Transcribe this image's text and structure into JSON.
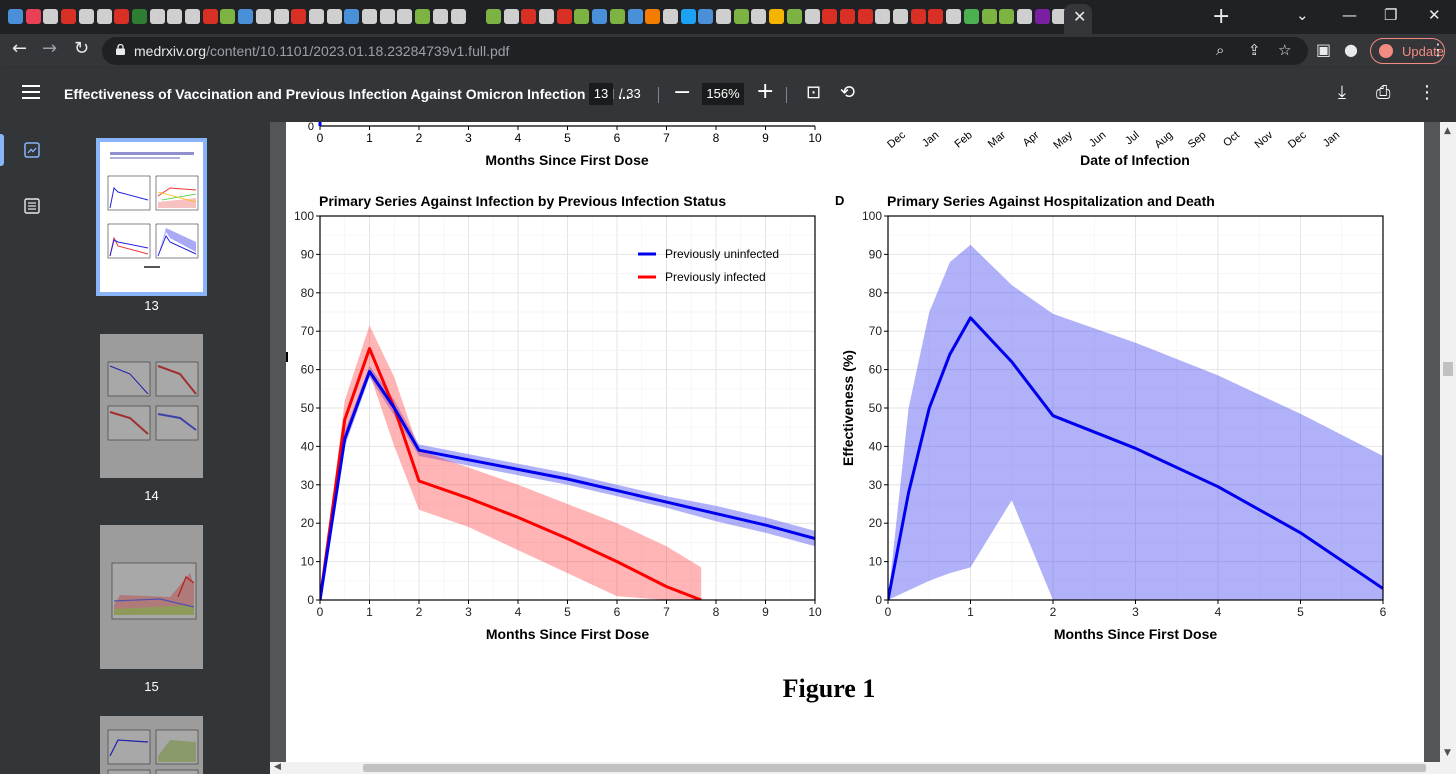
{
  "browser": {
    "tab_close": "✕",
    "new_tab": "+",
    "url_host": "medrxiv.org",
    "url_path": "/content/10.1101/2023.01.18.23284739v1.full.pdf",
    "update_label": "Update",
    "tab_icon_colors": [
      "#4a90d9",
      "#e94057",
      "#cfcfcf",
      "#d93025",
      "#cfcfcf",
      "#cfcfcf",
      "#d93025",
      "#2e7d32",
      "#cfcfcf",
      "#cfcfcf",
      "#cfcfcf",
      "#d93025",
      "#7cb342",
      "#4a90d9",
      "#cfcfcf",
      "#cfcfcf",
      "#d93025",
      "#cfcfcf",
      "#cfcfcf",
      "#4a90d9",
      "#cfcfcf",
      "#cfcfcf",
      "#cfcfcf",
      "#7cb342",
      "#cfcfcf",
      "#cfcfcf",
      "#202124",
      "#7cb342",
      "#cfcfcf",
      "#d93025",
      "#cfcfcf",
      "#d93025",
      "#7cb342",
      "#4a90d9",
      "#7cb342",
      "#4a90d9",
      "#f57c00",
      "#cfcfcf",
      "#1da1f2",
      "#4a90d9",
      "#cfcfcf",
      "#7cb342",
      "#cfcfcf",
      "#f5b400",
      "#7cb342",
      "#cfcfcf",
      "#d93025",
      "#d93025",
      "#d93025",
      "#cfcfcf",
      "#cfcfcf",
      "#d93025",
      "#d93025",
      "#cfcfcf",
      "#4caf50",
      "#7cb342",
      "#7cb342",
      "#cfcfcf",
      "#7b1fa2",
      "#cfcfcf"
    ]
  },
  "pdf": {
    "title": "Effectiveness of Vaccination and Previous Infection Against Omicron Infection and ...",
    "page_current": "13",
    "page_total": "/ 33",
    "zoom": "156%",
    "thumbnails": [
      {
        "label": "13"
      },
      {
        "label": "14"
      },
      {
        "label": "15"
      }
    ]
  },
  "figure": {
    "caption": "Figure 1",
    "top_left_xlabel": "Months Since First Dose",
    "top_right_xlabel": "Date of Infection",
    "top_left_ticks": [
      "0",
      "1",
      "2",
      "3",
      "4",
      "5",
      "6",
      "7",
      "8",
      "9",
      "10"
    ],
    "top_right_ticks": [
      "Dec",
      "Jan",
      "Feb",
      "Mar",
      "Apr",
      "May",
      "Jun",
      "Jul",
      "Aug",
      "Sep",
      "Oct",
      "Nov",
      "Dec",
      "Jan"
    ],
    "panel_d_letter": "D"
  },
  "chart_data": [
    {
      "type": "line",
      "title": "Primary Series Against Infection by Previous Infection Status",
      "xlabel": "Months Since First Dose",
      "ylabel": "",
      "xlim": [
        0,
        10
      ],
      "ylim": [
        0,
        100
      ],
      "xticks": [
        "0",
        "1",
        "2",
        "3",
        "4",
        "5",
        "6",
        "7",
        "8",
        "9",
        "10"
      ],
      "yticks": [
        "0",
        "10",
        "20",
        "30",
        "40",
        "50",
        "60",
        "70",
        "80",
        "90",
        "100"
      ],
      "legend_position": "top-right",
      "series": [
        {
          "name": "Previously uninfected",
          "color": "#0000ee",
          "x": [
            0,
            0.5,
            1,
            1.5,
            2,
            3,
            4,
            5,
            6,
            7,
            8,
            9,
            10
          ],
          "y": [
            0,
            42,
            59.5,
            50,
            39,
            36.5,
            34,
            31.5,
            28.5,
            25.5,
            22.5,
            19.5,
            16
          ],
          "lower": [
            0,
            40,
            58,
            48,
            37.5,
            35,
            32.5,
            30,
            27,
            24,
            20.5,
            17.5,
            14
          ],
          "upper": [
            0,
            44,
            61,
            52,
            40.5,
            38,
            35.5,
            33,
            30,
            27,
            24.5,
            21.5,
            18
          ]
        },
        {
          "name": "Previously infected",
          "color": "#ff0000",
          "x": [
            0,
            0.5,
            1,
            1.5,
            2,
            3,
            4,
            5,
            6,
            7,
            7.7
          ],
          "y": [
            0,
            47,
            65.5,
            50,
            31,
            26.5,
            21.5,
            16,
            10,
            3.5,
            0
          ],
          "lower": [
            0,
            42,
            59,
            40,
            23.5,
            19,
            13,
            7,
            1,
            0,
            0
          ],
          "upper": [
            0,
            52,
            71.5,
            58,
            39,
            34.5,
            30,
            25,
            20,
            14,
            8.5
          ]
        }
      ]
    },
    {
      "type": "line",
      "title": "Primary Series Against Hospitalization and Death",
      "xlabel": "Months Since First Dose",
      "ylabel": "Effectiveness (%)",
      "xlim": [
        0,
        6
      ],
      "ylim": [
        0,
        100
      ],
      "xticks": [
        "0",
        "1",
        "2",
        "3",
        "4",
        "5",
        "6"
      ],
      "yticks": [
        "0",
        "10",
        "20",
        "30",
        "40",
        "50",
        "60",
        "70",
        "80",
        "90",
        "100"
      ],
      "series": [
        {
          "name": "",
          "color": "#0000ee",
          "x": [
            0,
            0.25,
            0.5,
            0.75,
            1,
            1.5,
            2,
            3,
            4,
            5,
            6
          ],
          "y": [
            0,
            28,
            50,
            64,
            73.5,
            62,
            48,
            39.5,
            29.5,
            17.5,
            3
          ],
          "lower": [
            0,
            2.5,
            5,
            7,
            8.5,
            26,
            0,
            0,
            0,
            0,
            0
          ],
          "upper": [
            0,
            50,
            75,
            88,
            92.5,
            82,
            74.5,
            67,
            58.5,
            48.5,
            37.5
          ]
        }
      ]
    }
  ]
}
